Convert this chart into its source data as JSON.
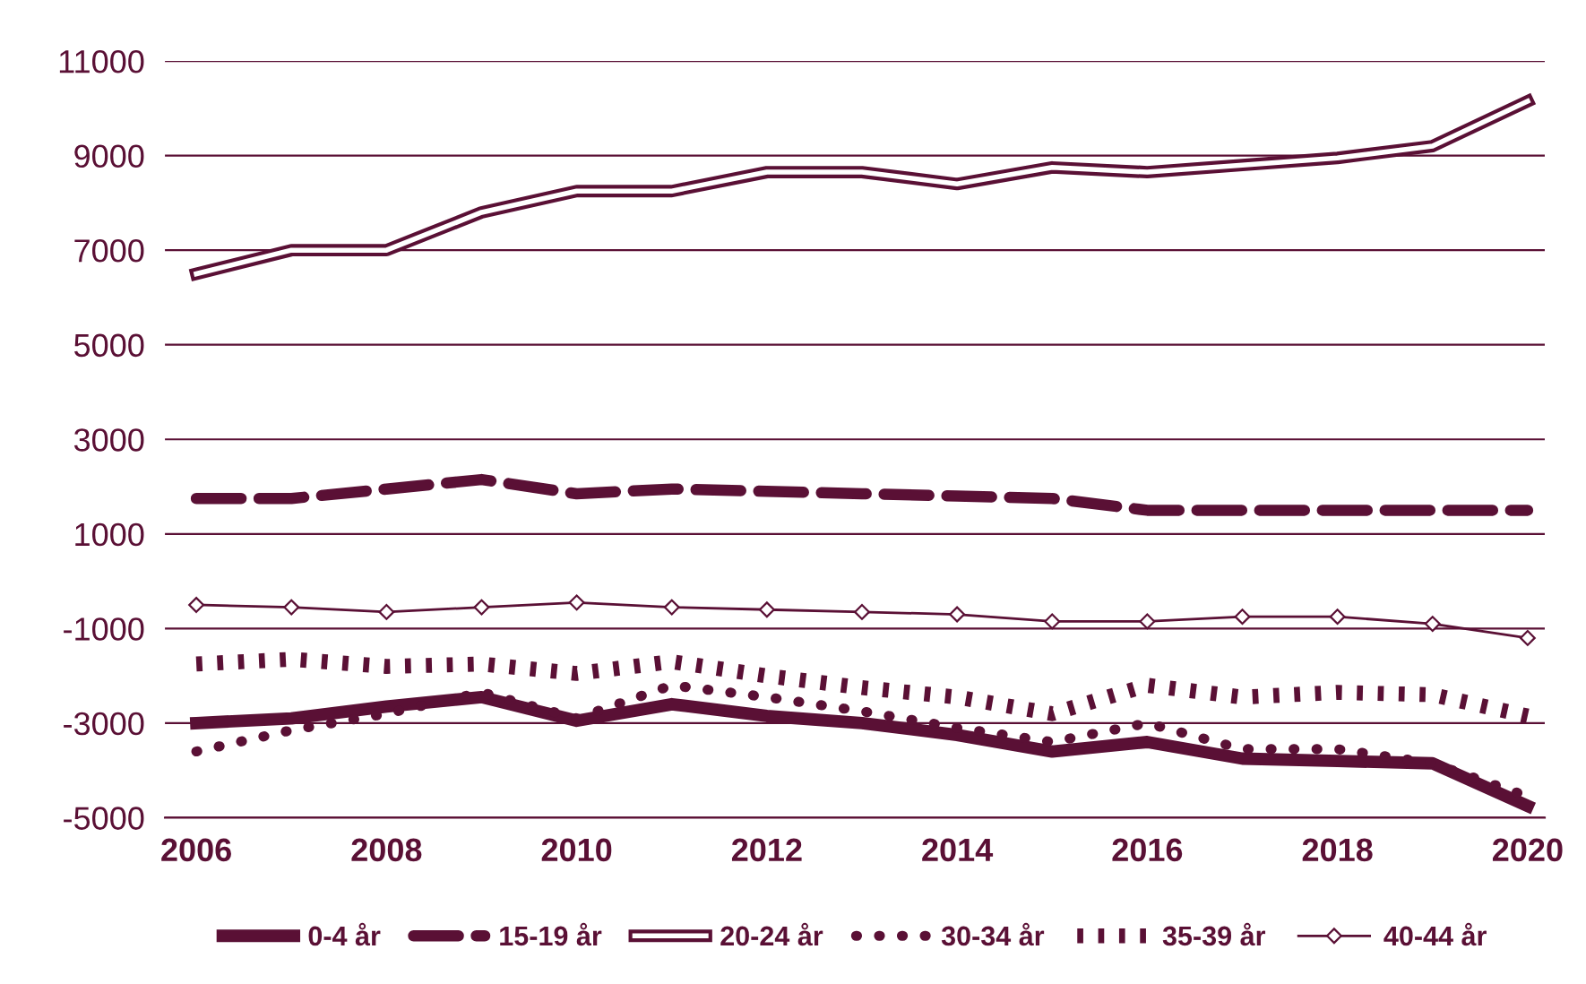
{
  "chart_data": {
    "type": "line",
    "x": [
      2006,
      2007,
      2008,
      2009,
      2010,
      2011,
      2012,
      2013,
      2014,
      2015,
      2016,
      2017,
      2018,
      2019,
      2020
    ],
    "series": [
      {
        "name": "0-4 år",
        "color": "#5a1035",
        "line_style": "solid",
        "values": [
          -3000,
          -2900,
          -2650,
          -2450,
          -2950,
          -2600,
          -2850,
          -3000,
          -3250,
          -3600,
          -3400,
          -3750,
          -3800,
          -3850,
          -4750
        ]
      },
      {
        "name": "15-19 år",
        "color": "#5a1035",
        "line_style": "dashed",
        "values": [
          1750,
          1750,
          1950,
          2150,
          1850,
          1950,
          1900,
          1850,
          1800,
          1750,
          1500,
          1500,
          1500,
          1500,
          1500
        ]
      },
      {
        "name": "20-24 år",
        "color": "#5a1035",
        "line_style": "solid",
        "values": [
          6500,
          7000,
          7000,
          7800,
          8250,
          8250,
          8650,
          8650,
          8400,
          8750,
          8650,
          8800,
          8950,
          9200,
          10150
        ]
      },
      {
        "name": "30-34 år",
        "color": "#5a1035",
        "line_style": "dotted",
        "values": [
          -3600,
          -3150,
          -2800,
          -2350,
          -2900,
          -2200,
          -2450,
          -2750,
          -3100,
          -3400,
          -3000,
          -3550,
          -3550,
          -3850,
          -4550
        ]
      },
      {
        "name": "35-39 år",
        "color": "#5a1035",
        "line_style": "dashed",
        "values": [
          -1750,
          -1650,
          -1800,
          -1750,
          -1950,
          -1700,
          -2000,
          -2250,
          -2450,
          -2800,
          -2200,
          -2450,
          -2350,
          -2400,
          -2850
        ]
      },
      {
        "name": "40-44 år",
        "color": "#5a1035",
        "line_style": "solid",
        "marker": "diamond",
        "values": [
          -500,
          -550,
          -650,
          -550,
          -450,
          -550,
          -600,
          -650,
          -700,
          -850,
          -850,
          -750,
          -750,
          -900,
          -1200
        ]
      }
    ],
    "xlim": [
      2005.67,
      2020.18
    ],
    "ylim": [
      -5000,
      11000
    ],
    "xticks": [
      2006,
      2008,
      2010,
      2012,
      2014,
      2016,
      2018,
      2020
    ],
    "yticks": [
      {
        "value": -5000,
        "label": "-5000"
      },
      {
        "value": -3000,
        "label": "-3000"
      },
      {
        "value": -1000,
        "label": "-1000"
      },
      1000,
      3000,
      5000,
      7000,
      9000,
      11000
    ],
    "grid": "y",
    "legend": "bottom"
  }
}
